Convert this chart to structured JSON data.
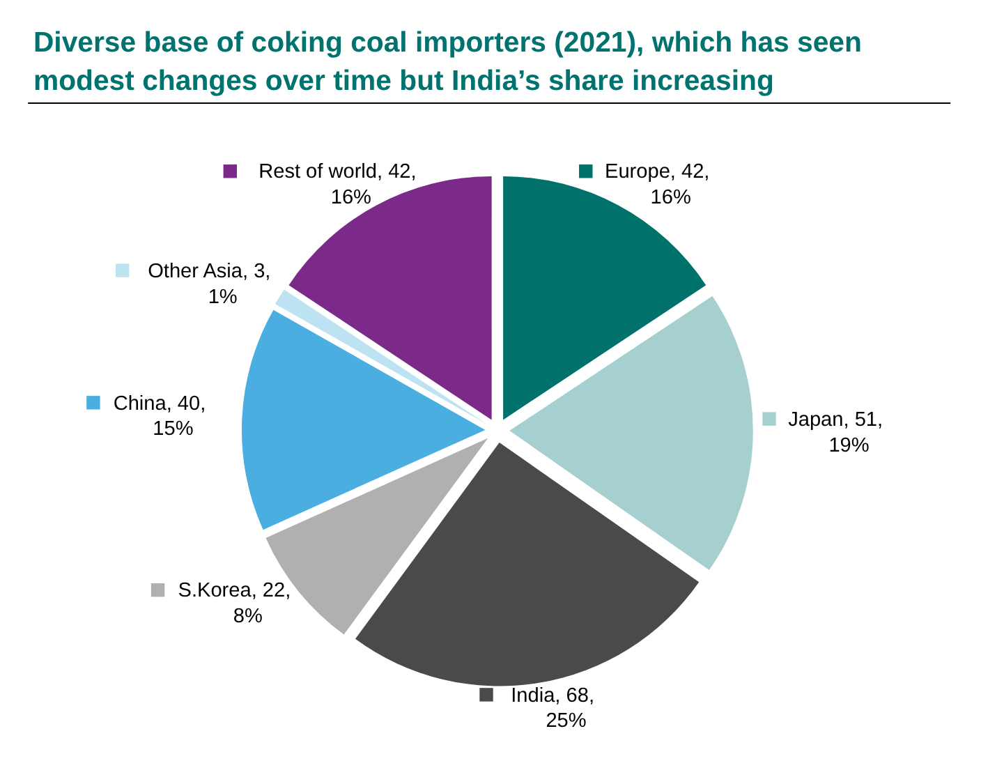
{
  "chart_data": {
    "type": "pie",
    "title": "Diverse base of coking coal importers (2021), which has seen modest changes over time but India’s share increasing",
    "categories": [
      "Europe",
      "Japan",
      "India",
      "S.Korea",
      "China",
      "Other Asia",
      "Rest of world"
    ],
    "values": [
      42,
      51,
      68,
      22,
      40,
      3,
      42
    ],
    "colors": [
      "#00716b",
      "#a6cfcf",
      "#4a4a4a",
      "#b0b0b0",
      "#4aaee0",
      "#bde3f2",
      "#7b2a8a"
    ],
    "legend": "right",
    "value_labels": [
      "42, 16%",
      "51, 19%",
      "68, 25%",
      "22, 8%",
      "40, 15%",
      "3, 1%",
      "42, 16%"
    ]
  }
}
